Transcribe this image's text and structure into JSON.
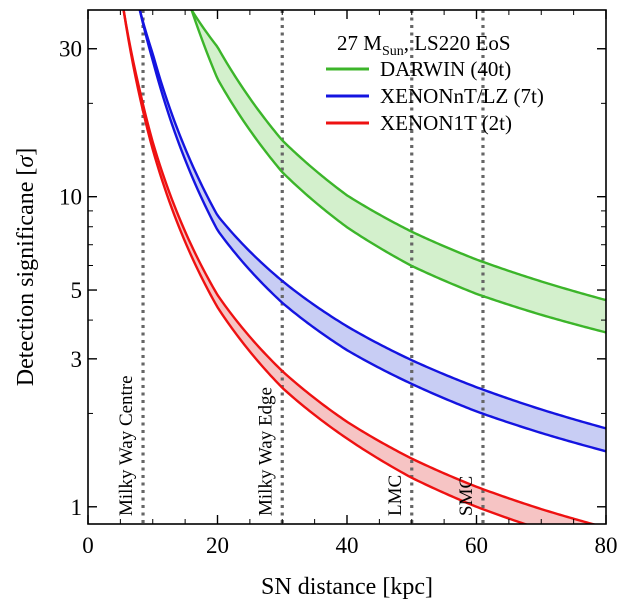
{
  "chart_data": {
    "type": "area",
    "xlabel": "SN distance [kpc]",
    "ylabel_text": "Detection significane [",
    "ylabel_symbol": "σ",
    "ylabel_close": "]",
    "xlim": [
      0,
      80
    ],
    "ylim": [
      0.88,
      40
    ],
    "yscale": "log",
    "xticks": [
      0,
      20,
      40,
      60,
      80
    ],
    "yticks": [
      1,
      3,
      5,
      10,
      30
    ],
    "legend": {
      "header_main": "27 M",
      "header_sub": "Sun",
      "header_tail": ", LS220 EoS",
      "placement": "top-right"
    },
    "series": [
      {
        "name": "DARWIN (40t)",
        "color": "#3cb52a",
        "fill": "#d3f0cc",
        "x": [
          16,
          20,
          30,
          40,
          50,
          60,
          70,
          80
        ],
        "upper": [
          40,
          30.4,
          15.2,
          10.1,
          7.71,
          6.27,
          5.33,
          4.64
        ],
        "lower": [
          40,
          24.0,
          12.0,
          7.97,
          5.98,
          4.86,
          4.16,
          3.65
        ]
      },
      {
        "name": "XENONnT/LZ (7t)",
        "color": "#1414e0",
        "fill": "#c8cdf4",
        "x": [
          8,
          10,
          20,
          30,
          40,
          50,
          60,
          70,
          80
        ],
        "upper": [
          40,
          28.9,
          8.7,
          5.35,
          3.82,
          2.97,
          2.43,
          2.06,
          1.79
        ],
        "lower": [
          40,
          27.5,
          7.8,
          4.55,
          3.2,
          2.49,
          2.03,
          1.73,
          1.51
        ]
      },
      {
        "name": "XENON1T (2t)",
        "color": "#ee1111",
        "fill": "#f6c4c4",
        "x": [
          5.5,
          8,
          10,
          20,
          30,
          40,
          50,
          60,
          70,
          80
        ],
        "upper": [
          40,
          22.0,
          15.0,
          4.82,
          2.74,
          1.88,
          1.43,
          1.16,
          0.983,
          0.856
        ],
        "lower": [
          40,
          21.0,
          14.2,
          4.4,
          2.42,
          1.66,
          1.24,
          1.0,
          0.845,
          0.738
        ]
      }
    ],
    "annotations": [
      {
        "label": "Milky Way Centre",
        "x": 8.5,
        "color": "#666666"
      },
      {
        "label": "Milky Way Edge",
        "x": 30,
        "color": "#666666"
      },
      {
        "label": "LMC",
        "x": 50,
        "color": "#666666"
      },
      {
        "label": "SMC",
        "x": 61,
        "color": "#666666"
      }
    ],
    "grid": false
  }
}
